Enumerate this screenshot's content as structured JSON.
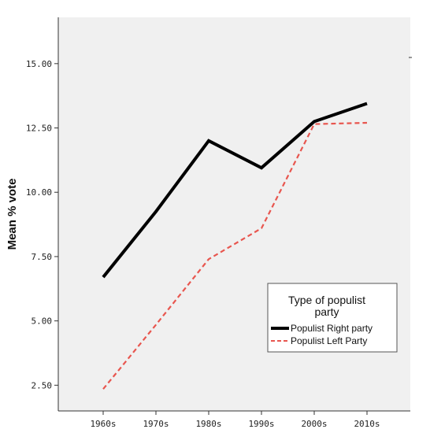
{
  "chart_data": {
    "type": "line",
    "title": "",
    "xlabel": "",
    "ylabel": "Mean % vote",
    "categories": [
      "1960s",
      "1970s",
      "1980s",
      "1990s",
      "2000s",
      "2010s"
    ],
    "y_ticks": [
      "2.50",
      "5.00",
      "7.50",
      "10.00",
      "12.50",
      "15.00"
    ],
    "ylim": [
      1.5,
      16.8
    ],
    "grid": false,
    "legend": {
      "title_lines": [
        "Type of populist",
        "party"
      ],
      "placement": "bottom-right"
    },
    "series": [
      {
        "name": "Populist Right party",
        "values": [
          6.7,
          9.25,
          12.0,
          10.95,
          12.75,
          13.45
        ],
        "color": "#000000",
        "style": "solid"
      },
      {
        "name": "Populist Left Party",
        "values": [
          2.35,
          4.85,
          7.4,
          8.6,
          12.65,
          12.7
        ],
        "color": "#e8564f",
        "style": "dashed"
      }
    ]
  },
  "colors": {
    "plot_background": "#f0f0f0",
    "axis": "#333333",
    "legend_background": "#ffffff"
  }
}
